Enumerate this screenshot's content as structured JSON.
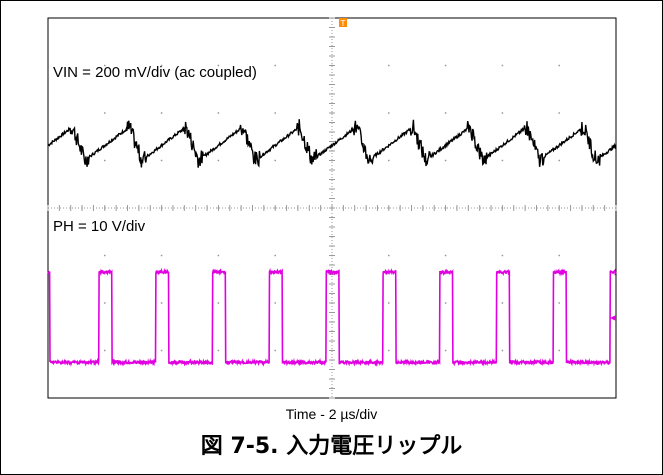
{
  "chart_data": {
    "type": "line",
    "title": "",
    "xlabel": "Time - 2 µs/div",
    "x_unit": "µs",
    "x_per_div": 2,
    "divisions": {
      "x": 10,
      "y": 8
    },
    "grid": true,
    "series": [
      {
        "name": "VIN = 200 mV/div (ac coupled)",
        "color": "#000000",
        "waveform": "sawtooth",
        "period_us": 2.0,
        "ramp_start_div": 2.15,
        "ramp_end_div": 2.85,
        "center_div": 5.25,
        "phase_us": 1.3
      },
      {
        "name": "PH = 10 V/div",
        "color": "#e000e0",
        "waveform": "square",
        "period_us": 2.0,
        "high_us": 0.45,
        "low_level_div": 0.75,
        "high_level_div": 2.65,
        "first_rise_us": 1.8
      }
    ],
    "trigger_marker": "T",
    "trigger_color": "#ff8c00",
    "level_marker_color": "#e000e0"
  },
  "caption": "図 7-5. 入力電圧リップル"
}
